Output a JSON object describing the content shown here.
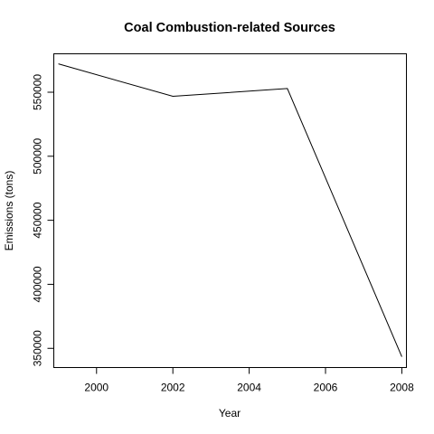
{
  "chart_data": {
    "type": "line",
    "title": "Coal Combustion-related Sources",
    "xlabel": "Year",
    "ylabel": "Emissions (tons)",
    "x": [
      1999,
      2002,
      2005,
      2008
    ],
    "series": [
      {
        "values": [
          572126,
          546789,
          552881,
          343432
        ]
      }
    ],
    "xticks": [
      2000,
      2002,
      2004,
      2006,
      2008
    ],
    "yticks": [
      350000,
      400000,
      450000,
      500000,
      550000
    ],
    "xlim": [
      1998.88,
      2008.12
    ],
    "ylim": [
      335000,
      580000
    ],
    "grid": false,
    "line_color": "#000000"
  }
}
